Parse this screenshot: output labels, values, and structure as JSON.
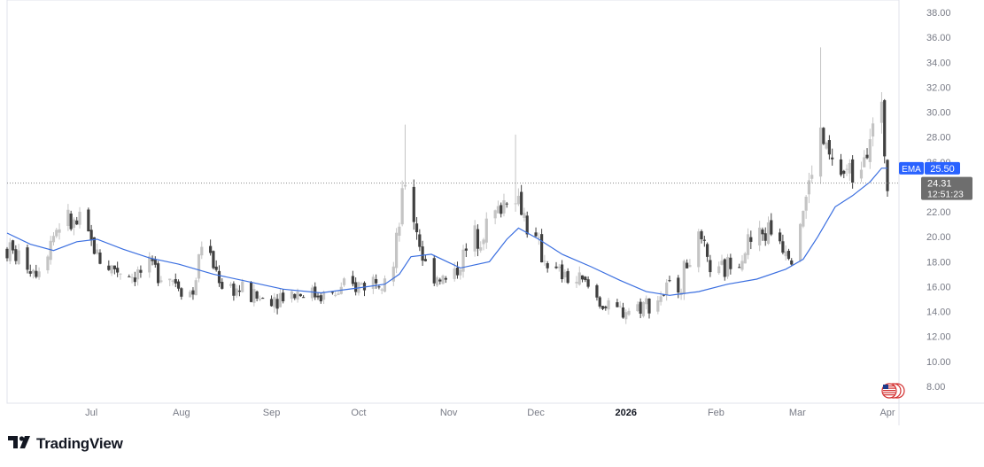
{
  "brand": {
    "name": "TradingView",
    "logo_icon": "tradingview-logo-icon"
  },
  "colors": {
    "up": "#c4c4c4",
    "down": "#404040",
    "ema": "#3b6fe0",
    "ema_badge": "#2962ff",
    "price_badge": "#6e6e6e",
    "grid_text": "#787b86",
    "axis_line": "#e0e3eb"
  },
  "chart_data": {
    "type": "candlestick",
    "title": "",
    "xlabel": "",
    "ylabel": "",
    "ylim": [
      7,
      38.5
    ],
    "y_ticks": [
      "38.00",
      "36.00",
      "34.00",
      "32.00",
      "30.00",
      "28.00",
      "26.00",
      "24.00",
      "22.00",
      "20.00",
      "18.00",
      "16.00",
      "14.00",
      "12.00",
      "10.00",
      "8.00"
    ],
    "x_ticks": [
      {
        "label": "Jul",
        "bold": false,
        "date": "2025-07-01"
      },
      {
        "label": "Aug",
        "bold": false,
        "date": "2025-08-01"
      },
      {
        "label": "Sep",
        "bold": false,
        "date": "2025-09-01"
      },
      {
        "label": "Oct",
        "bold": false,
        "date": "2025-10-01"
      },
      {
        "label": "Nov",
        "bold": false,
        "date": "2025-11-01"
      },
      {
        "label": "Dec",
        "bold": false,
        "date": "2025-12-01"
      },
      {
        "label": "2026",
        "bold": true,
        "date": "2026-01-01"
      },
      {
        "label": "Feb",
        "bold": false,
        "date": "2026-02-01"
      },
      {
        "label": "Mar",
        "bold": false,
        "date": "2026-03-01"
      },
      {
        "label": "Apr",
        "bold": false,
        "date": "2026-04-01"
      }
    ],
    "series": [
      {
        "name": "EMA",
        "type": "line",
        "values": [
          {
            "date": "2025-06-02",
            "value": 20.3
          },
          {
            "date": "2025-06-10",
            "value": 19.4
          },
          {
            "date": "2025-06-18",
            "value": 18.9
          },
          {
            "date": "2025-06-26",
            "value": 19.6
          },
          {
            "date": "2025-07-03",
            "value": 19.8
          },
          {
            "date": "2025-07-12",
            "value": 19.0
          },
          {
            "date": "2025-07-21",
            "value": 18.3
          },
          {
            "date": "2025-07-31",
            "value": 17.8
          },
          {
            "date": "2025-08-12",
            "value": 17.0
          },
          {
            "date": "2025-08-24",
            "value": 16.4
          },
          {
            "date": "2025-09-05",
            "value": 15.8
          },
          {
            "date": "2025-09-18",
            "value": 15.5
          },
          {
            "date": "2025-10-01",
            "value": 15.9
          },
          {
            "date": "2025-10-10",
            "value": 16.2
          },
          {
            "date": "2025-10-15",
            "value": 17.0
          },
          {
            "date": "2025-10-19",
            "value": 18.4
          },
          {
            "date": "2025-10-26",
            "value": 18.6
          },
          {
            "date": "2025-11-05",
            "value": 17.5
          },
          {
            "date": "2025-11-15",
            "value": 18.0
          },
          {
            "date": "2025-11-21",
            "value": 19.8
          },
          {
            "date": "2025-11-25",
            "value": 20.7
          },
          {
            "date": "2025-12-02",
            "value": 19.8
          },
          {
            "date": "2025-12-10",
            "value": 18.6
          },
          {
            "date": "2025-12-20",
            "value": 17.6
          },
          {
            "date": "2025-12-30",
            "value": 16.5
          },
          {
            "date": "2026-01-08",
            "value": 15.6
          },
          {
            "date": "2026-01-16",
            "value": 15.3
          },
          {
            "date": "2026-01-26",
            "value": 15.6
          },
          {
            "date": "2026-02-05",
            "value": 16.2
          },
          {
            "date": "2026-02-15",
            "value": 16.6
          },
          {
            "date": "2026-02-25",
            "value": 17.4
          },
          {
            "date": "2026-03-03",
            "value": 18.2
          },
          {
            "date": "2026-03-08",
            "value": 20.0
          },
          {
            "date": "2026-03-14",
            "value": 22.4
          },
          {
            "date": "2026-03-20",
            "value": 23.3
          },
          {
            "date": "2026-03-26",
            "value": 24.4
          },
          {
            "date": "2026-03-30",
            "value": 25.5
          },
          {
            "date": "2026-04-01",
            "value": 25.5
          }
        ]
      }
    ],
    "candles_generator": {
      "note_none": "",
      "start": "2025-06-02",
      "end": "2026-04-01",
      "anchors": [
        {
          "date": "2025-06-02",
          "value": 19.0
        },
        {
          "date": "2025-06-12",
          "value": 17.4
        },
        {
          "date": "2025-06-20",
          "value": 21.2
        },
        {
          "date": "2025-06-28",
          "value": 20.8
        },
        {
          "date": "2025-07-05",
          "value": 17.8
        },
        {
          "date": "2025-07-15",
          "value": 17.0
        },
        {
          "date": "2025-07-25",
          "value": 17.4
        },
        {
          "date": "2025-08-05",
          "value": 15.4
        },
        {
          "date": "2025-08-08",
          "value": 19.6
        },
        {
          "date": "2025-08-15",
          "value": 16.3
        },
        {
          "date": "2025-08-28",
          "value": 15.0
        },
        {
          "date": "2025-09-10",
          "value": 15.6
        },
        {
          "date": "2025-09-22",
          "value": 15.3
        },
        {
          "date": "2025-10-05",
          "value": 16.5
        },
        {
          "date": "2025-10-13",
          "value": 17.5
        },
        {
          "date": "2025-10-17",
          "value": 24.5
        },
        {
          "date": "2025-10-24",
          "value": 17.6
        },
        {
          "date": "2025-11-01",
          "value": 16.3
        },
        {
          "date": "2025-11-10",
          "value": 20.0
        },
        {
          "date": "2025-11-18",
          "value": 22.0
        },
        {
          "date": "2025-11-23",
          "value": 24.2
        },
        {
          "date": "2025-12-01",
          "value": 19.3
        },
        {
          "date": "2025-12-08",
          "value": 17.0
        },
        {
          "date": "2025-12-18",
          "value": 16.2
        },
        {
          "date": "2025-12-27",
          "value": 13.8
        },
        {
          "date": "2026-01-10",
          "value": 14.8
        },
        {
          "date": "2026-01-20",
          "value": 16.5
        },
        {
          "date": "2026-01-25",
          "value": 19.8
        },
        {
          "date": "2026-02-01",
          "value": 16.6
        },
        {
          "date": "2026-02-12",
          "value": 19.5
        },
        {
          "date": "2026-02-20",
          "value": 20.6
        },
        {
          "date": "2026-02-27",
          "value": 19.0
        },
        {
          "date": "2026-03-05",
          "value": 24.0
        },
        {
          "date": "2026-03-08",
          "value": 28.5
        },
        {
          "date": "2026-03-14",
          "value": 25.2
        },
        {
          "date": "2026-03-20",
          "value": 25.0
        },
        {
          "date": "2026-03-25",
          "value": 28.0
        },
        {
          "date": "2026-03-30",
          "value": 29.5
        },
        {
          "date": "2026-04-01",
          "value": 24.3
        }
      ],
      "spikes": [
        {
          "date": "2025-10-17",
          "high": 29.0
        },
        {
          "date": "2025-11-24",
          "high": 28.2
        },
        {
          "date": "2026-03-09",
          "high": 35.2
        },
        {
          "date": "2026-03-30",
          "high": 31.6
        }
      ]
    },
    "badges": {
      "ema_label": "EMA",
      "ema_value": "25.50",
      "price_value": "24.31",
      "countdown": "12:51:23"
    },
    "current_price": 24.31,
    "ema_last": 25.5,
    "flag_icon": "us-flag-icon"
  }
}
